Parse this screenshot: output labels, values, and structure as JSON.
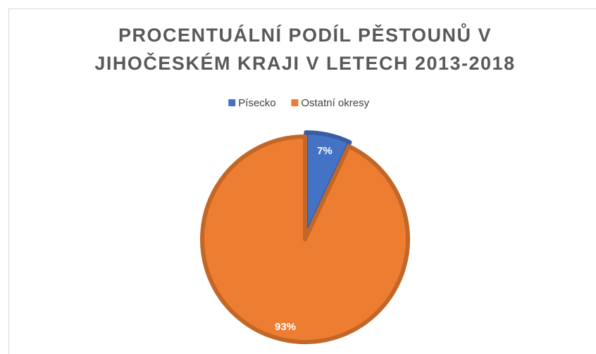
{
  "chart_data": {
    "type": "pie",
    "title": [
      "PROCENTUÁLNÍ PODÍL PĚSTOUNŮ V",
      "JIHOČESKÉM KRAJI V LETECH 2013-2018"
    ],
    "categories": [
      "Písecko",
      "Ostatní okresy"
    ],
    "values": [
      7,
      93
    ],
    "value_labels": [
      "7%",
      "93%"
    ],
    "colors": [
      "#4472c4",
      "#ed7d31"
    ],
    "legend": "top"
  }
}
